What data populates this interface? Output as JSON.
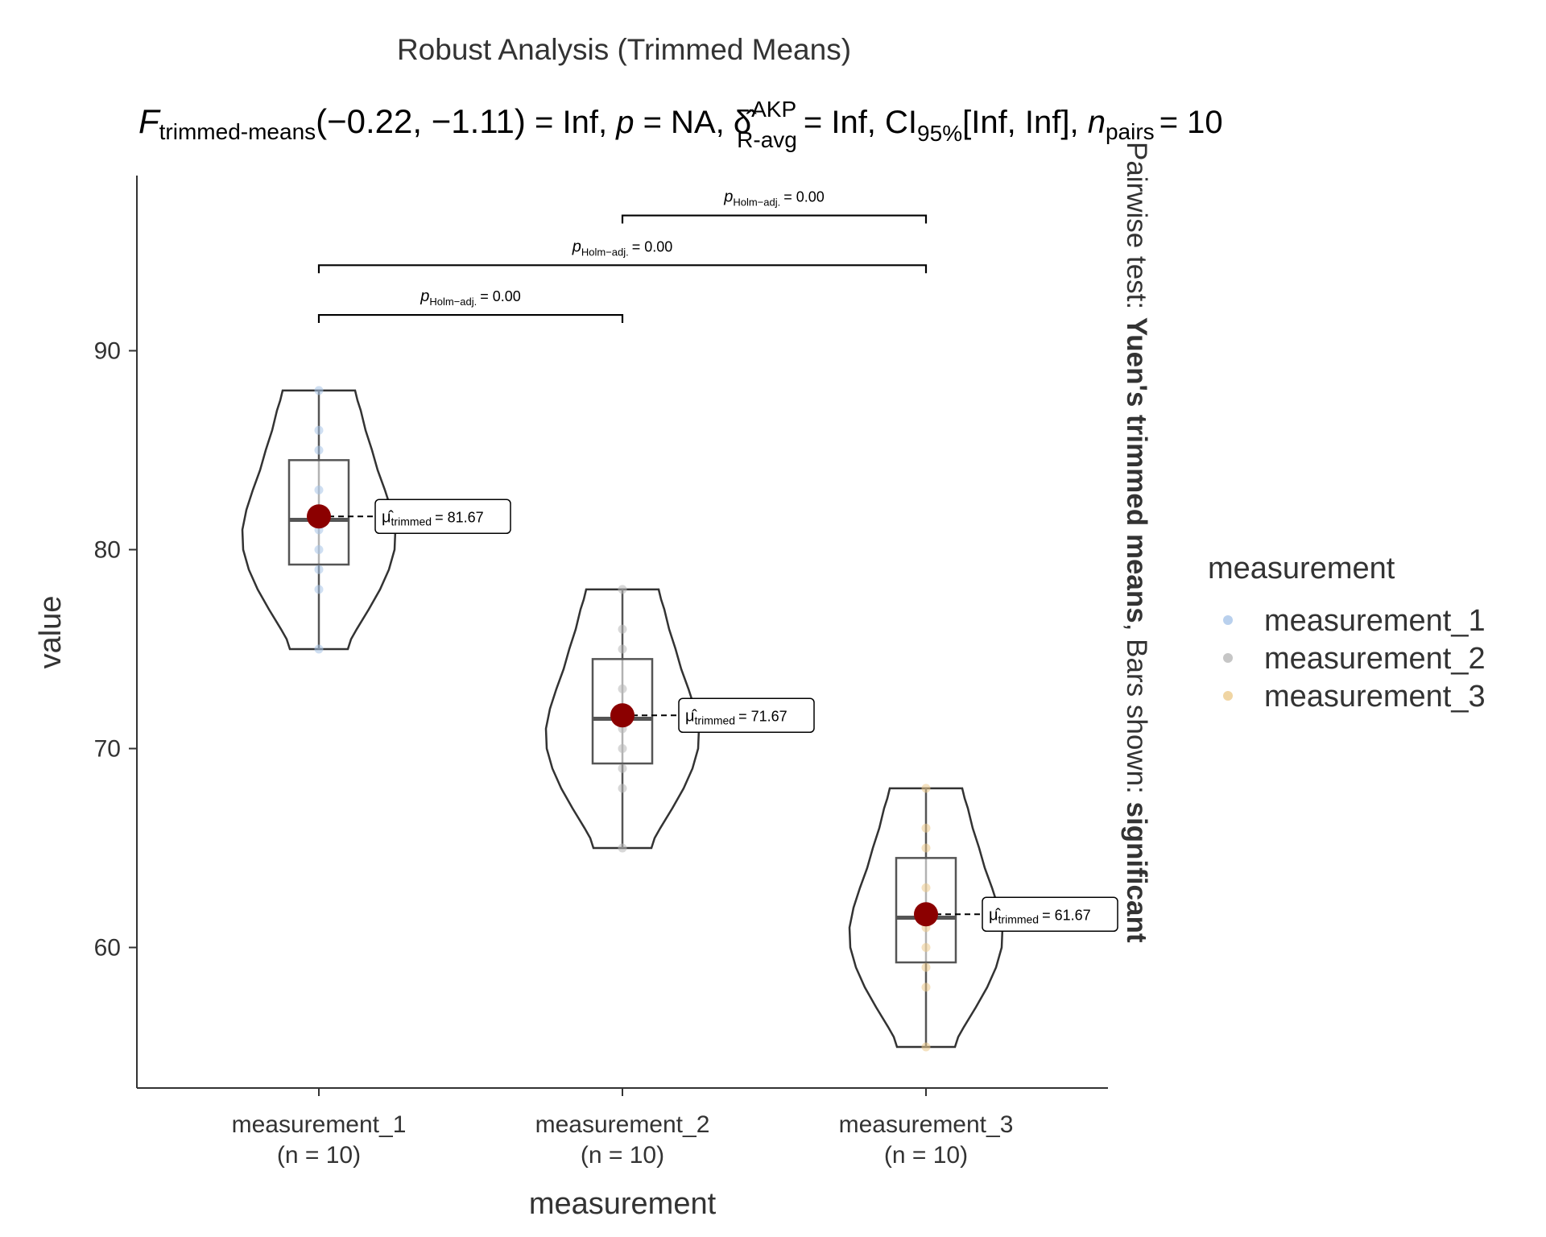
{
  "chart_data": {
    "type": "violin",
    "title": "Robust Analysis (Trimmed Means)",
    "subtitle": {
      "stat_symbol": "F",
      "stat_sub": "trimmed-means",
      "df": "(−0.22, −1.11)",
      "stat_value": "= Inf,",
      "p_symbol": "p",
      "p_value": "= NA,",
      "effect_symbol": "δ̂",
      "effect_sup": "AKP",
      "effect_sub": "R-avg",
      "effect_value": "= Inf,",
      "ci_symbol": "CI",
      "ci_sub": "95%",
      "ci_value": "[Inf, Inf],",
      "n_symbol": "n",
      "n_sub": "pairs",
      "n_value": "= 10"
    },
    "xlabel": "measurement",
    "ylabel": "value",
    "ylim": [
      53,
      98.8
    ],
    "yticks": [
      60,
      70,
      80,
      90
    ],
    "categories": [
      "measurement_1",
      "measurement_2",
      "measurement_3"
    ],
    "category_counts": [
      "(n = 10)",
      "(n = 10)",
      "(n = 10)"
    ],
    "legend": {
      "title": "measurement",
      "placement": "right",
      "entries": [
        "measurement_1",
        "measurement_2",
        "measurement_3"
      ]
    },
    "colors": [
      "#a8c4e8",
      "#b8b8b8",
      "#eccb8c"
    ],
    "series": [
      {
        "name": "measurement_1",
        "points": [
          88,
          86,
          85,
          83,
          82,
          81,
          80,
          79,
          78,
          75
        ],
        "box": {
          "min": 75,
          "q1": 79.25,
          "median": 81.5,
          "q3": 84.5,
          "max": 88
        },
        "trimmed_mean": 81.67,
        "mean_label": "= 81.67"
      },
      {
        "name": "measurement_2",
        "points": [
          78,
          76,
          75,
          73,
          72,
          71,
          70,
          69,
          68,
          65
        ],
        "box": {
          "min": 65,
          "q1": 69.25,
          "median": 71.5,
          "q3": 74.5,
          "max": 78
        },
        "trimmed_mean": 71.67,
        "mean_label": "= 71.67"
      },
      {
        "name": "measurement_3",
        "points": [
          68,
          66,
          65,
          63,
          62,
          61,
          60,
          59,
          58,
          55
        ],
        "box": {
          "min": 55,
          "q1": 59.25,
          "median": 61.5,
          "q3": 64.5,
          "max": 68
        },
        "trimmed_mean": 61.67,
        "mean_label": "= 61.67"
      }
    ],
    "mean_label_symbol": "μ̂",
    "mean_label_sub": "trimmed",
    "pairwise": [
      {
        "from": 0,
        "to": 2,
        "y_value": 96.8,
        "p_symbol": "p",
        "p_sub": "Holm−adj.",
        "p_text": "= 0.00",
        "anchor": "mid-right"
      },
      {
        "from": 0,
        "to": 2,
        "y_value": 94.3,
        "p_symbol": "p",
        "p_sub": "Holm−adj.",
        "p_text": "= 0.00",
        "anchor": "mid"
      },
      {
        "from": 0,
        "to": 1,
        "y_value": 91.8,
        "p_symbol": "p",
        "p_sub": "Holm−adj.",
        "p_text": "= 0.00",
        "anchor": "mid"
      }
    ],
    "caption": {
      "prefix": "Pairwise test: ",
      "test_name": "Yuen's trimmed means",
      "middle": ", Bars shown: ",
      "shown": "significant"
    },
    "mean_point_color": "#8b0000"
  }
}
